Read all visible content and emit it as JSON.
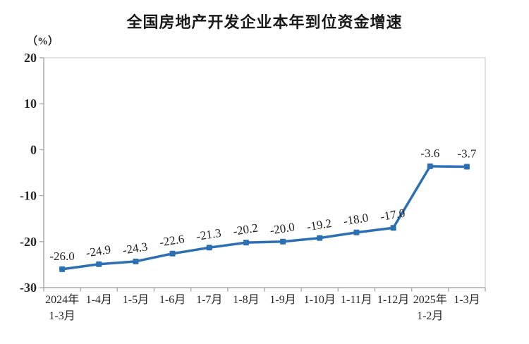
{
  "chart_data": {
    "type": "line",
    "title": "全国房地产开发企业本年到位资金增速",
    "unit_label": "（%）",
    "categories": [
      [
        "2024年",
        "1-3月"
      ],
      [
        "1-4月"
      ],
      [
        "1-5月"
      ],
      [
        "1-6月"
      ],
      [
        "1-7月"
      ],
      [
        "1-8月"
      ],
      [
        "1-9月"
      ],
      [
        "1-10月"
      ],
      [
        "1-11月"
      ],
      [
        "1-12月"
      ],
      [
        "2025年",
        "1-2月"
      ],
      [
        "1-3月"
      ]
    ],
    "values": [
      -26.0,
      -24.9,
      -24.3,
      -22.6,
      -21.3,
      -20.2,
      -20.0,
      -19.2,
      -18.0,
      -17.0,
      -3.6,
      -3.7
    ],
    "value_labels": [
      "-26.0",
      "-24.9",
      "-24.3",
      "-22.6",
      "-21.3",
      "-20.2",
      "-20.0",
      "-19.2",
      "-18.0",
      "-17.0",
      "-3.6",
      "-3.7"
    ],
    "ylabel": "",
    "xlabel": "",
    "ylim": [
      -30,
      20
    ],
    "yticks": [
      20,
      10,
      0,
      -10,
      -20,
      -30
    ],
    "grid": false,
    "legend": "none",
    "line_color": "#2C6FB2",
    "axis_color": "#ACACAC",
    "border_color": "#DCDCDC",
    "marker": "square"
  }
}
